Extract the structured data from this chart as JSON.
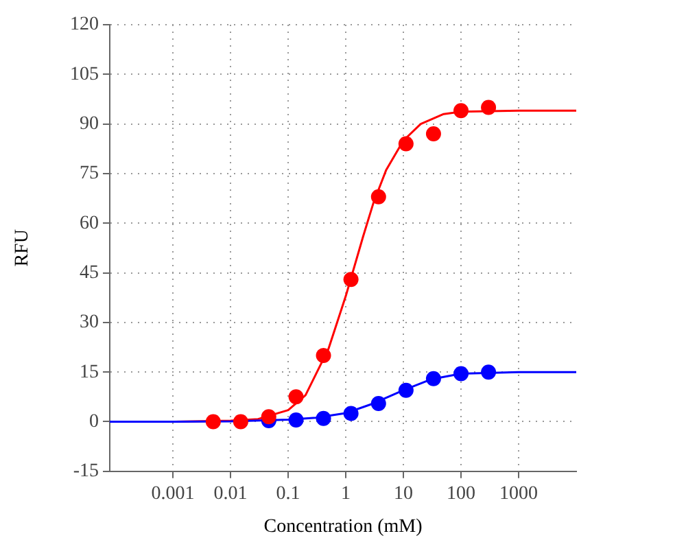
{
  "chart_data": {
    "type": "scatter",
    "xlabel": "Concentration (mM)",
    "ylabel": "RFU",
    "log": "x",
    "xlim": [
      8e-05,
      10000
    ],
    "xticks": [
      0.001,
      0.01,
      0.1,
      1,
      10,
      100,
      1000
    ],
    "ylim": [
      -15,
      120
    ],
    "yticks": [
      -15,
      0,
      15,
      30,
      45,
      60,
      75,
      90,
      105,
      120
    ],
    "grid": true,
    "legend": false,
    "marker": "circle",
    "series": [
      {
        "type": "line",
        "marker": "none",
        "color": "#ff0000",
        "x": [
          8e-05,
          0.001,
          0.01,
          0.03,
          0.1,
          0.2,
          0.5,
          1,
          2,
          3,
          5,
          10,
          20,
          50,
          100,
          1000,
          10000
        ],
        "values": [
          0,
          0,
          0.3,
          0.8,
          3.5,
          8,
          22,
          38,
          56,
          66,
          76,
          85,
          90,
          93,
          93.7,
          94,
          94
        ]
      },
      {
        "type": "line",
        "marker": "none",
        "color": "#0000ff",
        "x": [
          8e-05,
          0.001,
          0.01,
          0.1,
          0.3,
          1,
          3,
          10,
          30,
          100,
          1000,
          10000
        ],
        "values": [
          0,
          0,
          0.1,
          0.6,
          1.2,
          2.6,
          5.5,
          9.5,
          12.8,
          14.5,
          15,
          15
        ]
      },
      {
        "color": "#0000ff",
        "x": [
          0.046,
          0.137,
          0.41,
          1.23,
          3.7,
          11.1,
          33.3,
          100,
          300
        ],
        "values": [
          0.3,
          0.5,
          1,
          2.5,
          5.5,
          9.5,
          13,
          14.5,
          15
        ]
      },
      {
        "color": "#ff0000",
        "x": [
          0.005,
          0.015,
          0.046,
          0.137,
          0.41,
          1.23,
          3.7,
          11.1,
          33.3,
          100,
          300
        ],
        "values": [
          0,
          0,
          1.5,
          7.5,
          20,
          43,
          68,
          84,
          87,
          94,
          95
        ]
      }
    ]
  }
}
